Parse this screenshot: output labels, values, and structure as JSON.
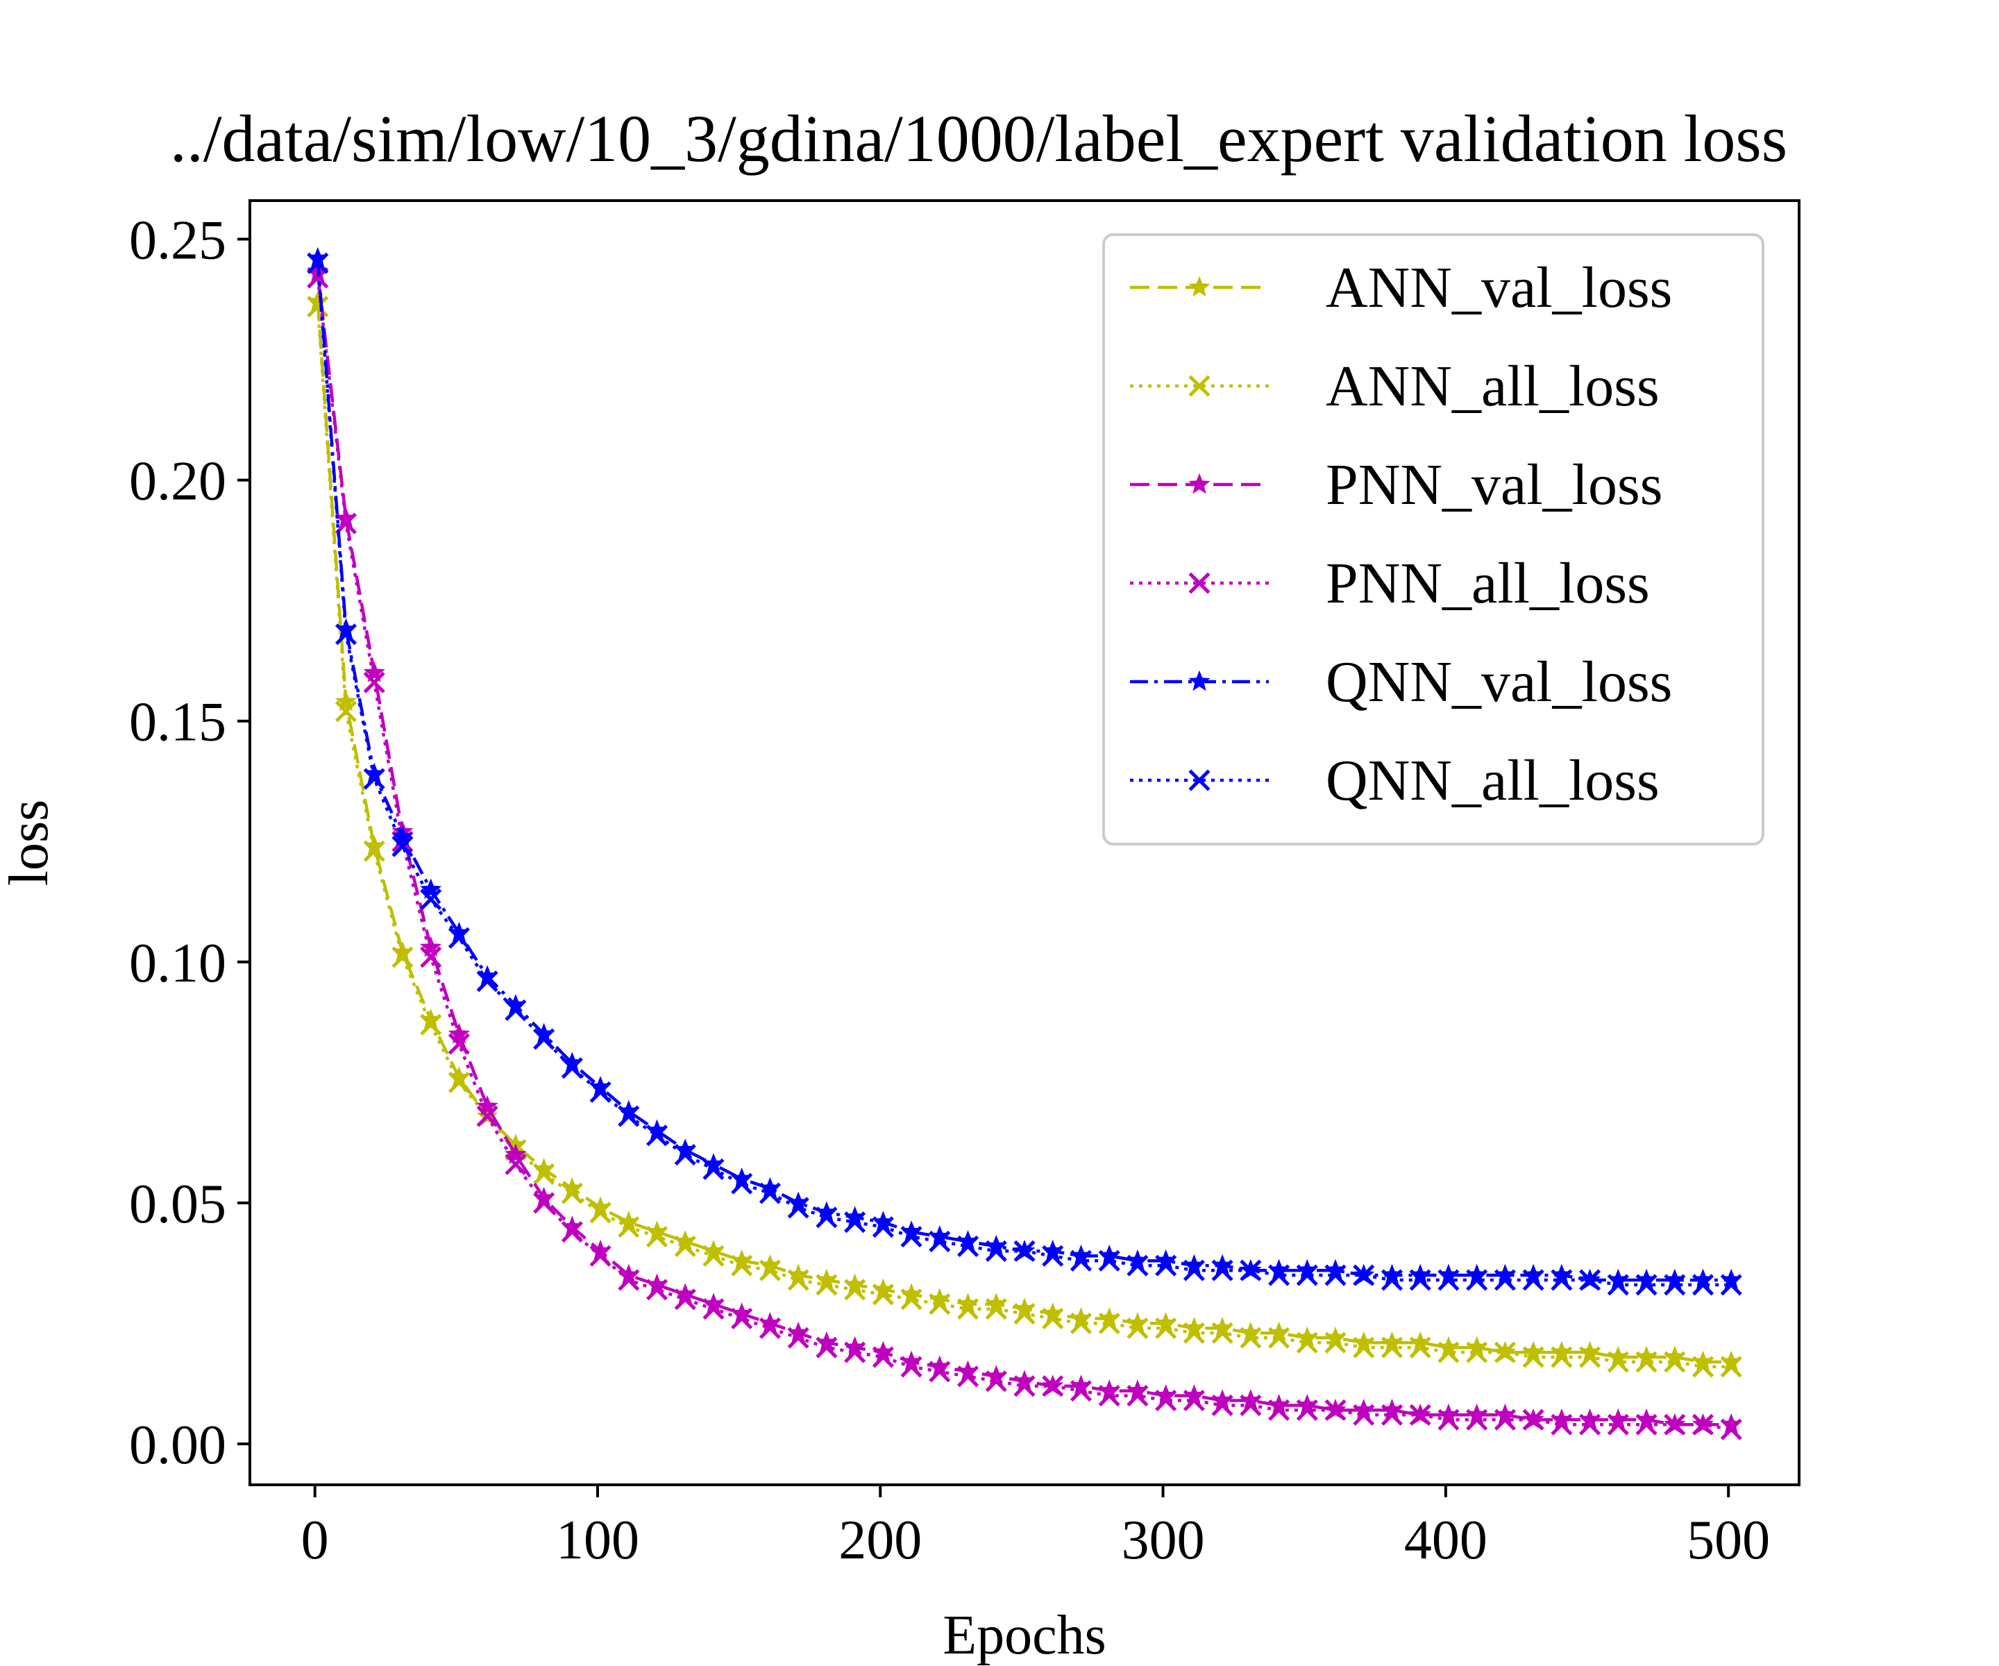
{
  "chart_data": {
    "type": "line",
    "title": "../data/sim/low/10_3/gdina/1000/label_expert validation loss",
    "xlabel": "Epochs",
    "ylabel": "loss",
    "xlim": [
      -23,
      525
    ],
    "ylim": [
      -0.0085,
      0.258
    ],
    "xticks": [
      0,
      100,
      200,
      300,
      400,
      500
    ],
    "xtick_labels": [
      "0",
      "100",
      "200",
      "300",
      "400",
      "500"
    ],
    "yticks": [
      0.0,
      0.05,
      0.1,
      0.15,
      0.2,
      0.25
    ],
    "ytick_labels": [
      "0.00",
      "0.05",
      "0.10",
      "0.15",
      "0.20",
      "0.25"
    ],
    "legend_position": "top-right",
    "x": [
      1,
      11,
      21,
      31,
      41,
      51,
      61,
      71,
      81,
      91,
      101,
      111,
      121,
      131,
      141,
      151,
      161,
      171,
      181,
      191,
      201,
      211,
      221,
      231,
      241,
      251,
      261,
      271,
      281,
      291,
      301,
      311,
      321,
      331,
      341,
      351,
      361,
      371,
      381,
      391,
      401,
      411,
      421,
      431,
      441,
      451,
      461,
      471,
      481,
      491,
      501
    ],
    "series": [
      {
        "name": "ANN_val_loss",
        "color": "#bfbf00",
        "dash": "dashed",
        "marker": "star",
        "values": [
          0.237,
          0.154,
          0.124,
          0.102,
          0.088,
          0.076,
          0.068,
          0.062,
          0.057,
          0.053,
          0.049,
          0.046,
          0.044,
          0.042,
          0.04,
          0.038,
          0.037,
          0.035,
          0.034,
          0.033,
          0.032,
          0.031,
          0.03,
          0.029,
          0.029,
          0.028,
          0.027,
          0.026,
          0.026,
          0.025,
          0.025,
          0.024,
          0.024,
          0.023,
          0.023,
          0.022,
          0.022,
          0.021,
          0.021,
          0.021,
          0.02,
          0.02,
          0.019,
          0.019,
          0.019,
          0.019,
          0.018,
          0.018,
          0.018,
          0.017,
          0.017
        ]
      },
      {
        "name": "ANN_all_loss",
        "color": "#bfbf00",
        "dash": "dotted",
        "marker": "x",
        "values": [
          0.236,
          0.152,
          0.123,
          0.101,
          0.087,
          0.075,
          0.068,
          0.061,
          0.056,
          0.052,
          0.048,
          0.045,
          0.043,
          0.041,
          0.039,
          0.037,
          0.036,
          0.034,
          0.033,
          0.032,
          0.031,
          0.03,
          0.029,
          0.028,
          0.028,
          0.027,
          0.026,
          0.025,
          0.025,
          0.024,
          0.024,
          0.023,
          0.023,
          0.022,
          0.022,
          0.021,
          0.021,
          0.02,
          0.02,
          0.02,
          0.019,
          0.019,
          0.019,
          0.018,
          0.018,
          0.018,
          0.017,
          0.017,
          0.017,
          0.016,
          0.016
        ]
      },
      {
        "name": "PNN_val_loss",
        "color": "#bf00bf",
        "dash": "dashed",
        "marker": "star",
        "values": [
          0.243,
          0.192,
          0.16,
          0.127,
          0.103,
          0.085,
          0.07,
          0.06,
          0.051,
          0.045,
          0.04,
          0.035,
          0.033,
          0.031,
          0.029,
          0.027,
          0.025,
          0.023,
          0.021,
          0.02,
          0.019,
          0.017,
          0.016,
          0.015,
          0.014,
          0.013,
          0.012,
          0.012,
          0.011,
          0.011,
          0.01,
          0.01,
          0.009,
          0.009,
          0.008,
          0.008,
          0.007,
          0.007,
          0.007,
          0.006,
          0.006,
          0.006,
          0.006,
          0.005,
          0.005,
          0.005,
          0.005,
          0.005,
          0.004,
          0.004,
          0.004
        ]
      },
      {
        "name": "PNN_all_loss",
        "color": "#bf00bf",
        "dash": "dotted",
        "marker": "x",
        "values": [
          0.242,
          0.191,
          0.158,
          0.125,
          0.101,
          0.083,
          0.068,
          0.058,
          0.05,
          0.044,
          0.039,
          0.034,
          0.032,
          0.03,
          0.028,
          0.026,
          0.024,
          0.022,
          0.02,
          0.019,
          0.018,
          0.016,
          0.015,
          0.014,
          0.013,
          0.012,
          0.012,
          0.011,
          0.01,
          0.01,
          0.009,
          0.009,
          0.008,
          0.008,
          0.007,
          0.007,
          0.007,
          0.006,
          0.006,
          0.006,
          0.005,
          0.005,
          0.005,
          0.005,
          0.004,
          0.004,
          0.004,
          0.004,
          0.004,
          0.004,
          0.003
        ]
      },
      {
        "name": "QNN_val_loss",
        "color": "#0000ff",
        "dash": "dashdot",
        "marker": "star",
        "values": [
          0.246,
          0.169,
          0.139,
          0.126,
          0.115,
          0.106,
          0.097,
          0.091,
          0.085,
          0.079,
          0.074,
          0.069,
          0.065,
          0.061,
          0.058,
          0.055,
          0.053,
          0.05,
          0.048,
          0.047,
          0.046,
          0.044,
          0.043,
          0.042,
          0.041,
          0.04,
          0.04,
          0.039,
          0.039,
          0.038,
          0.038,
          0.037,
          0.037,
          0.036,
          0.036,
          0.036,
          0.036,
          0.035,
          0.035,
          0.035,
          0.035,
          0.035,
          0.035,
          0.035,
          0.035,
          0.034,
          0.034,
          0.034,
          0.034,
          0.034,
          0.034
        ]
      },
      {
        "name": "QNN_all_loss",
        "color": "#0000ff",
        "dash": "dotted",
        "marker": "x",
        "values": [
          0.245,
          0.168,
          0.138,
          0.124,
          0.113,
          0.105,
          0.096,
          0.09,
          0.084,
          0.078,
          0.073,
          0.068,
          0.064,
          0.06,
          0.057,
          0.054,
          0.052,
          0.049,
          0.047,
          0.046,
          0.045,
          0.043,
          0.042,
          0.041,
          0.04,
          0.04,
          0.039,
          0.038,
          0.038,
          0.037,
          0.037,
          0.036,
          0.036,
          0.036,
          0.035,
          0.035,
          0.035,
          0.035,
          0.034,
          0.034,
          0.034,
          0.034,
          0.034,
          0.034,
          0.034,
          0.034,
          0.033,
          0.033,
          0.033,
          0.033,
          0.033
        ]
      }
    ]
  }
}
